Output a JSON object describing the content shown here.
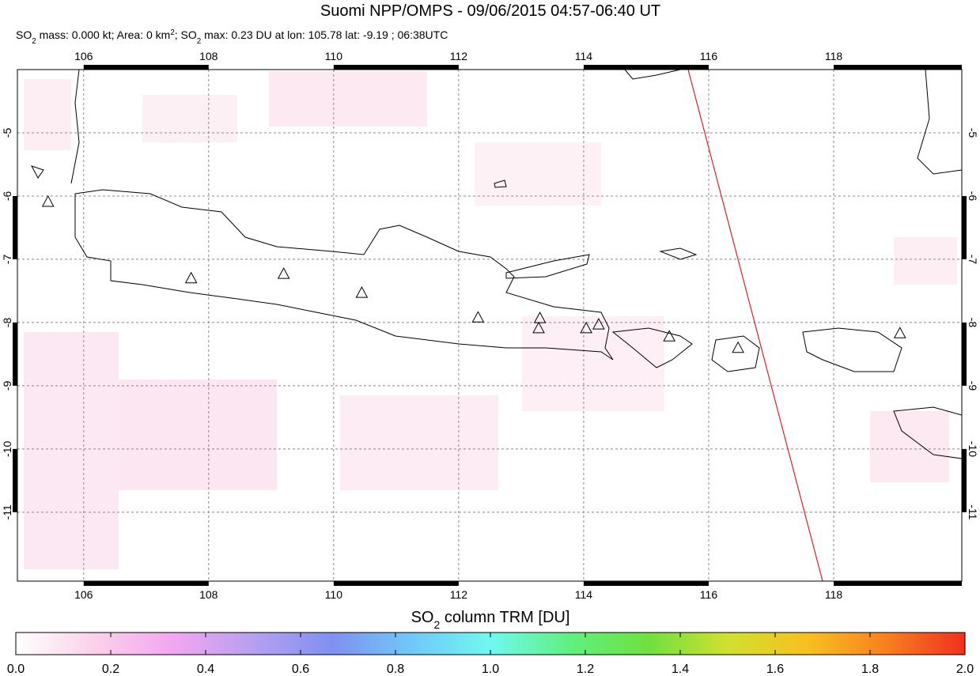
{
  "chart_data": {
    "type": "map",
    "title": "Suomi NPP/OMPS - 09/06/2015 04:57-06:40 UT",
    "subtitle": [
      "SO",
      "2",
      " mass: 0.000 kt; Area: 0 km",
      "2",
      "; SO",
      "2",
      " max: 0.23 DU at lon: 105.78 lat: -9.19 ; 06:38UTC"
    ],
    "xlim": [
      104.94,
      120.05
    ],
    "ylim": [
      -12.09,
      -4.0
    ],
    "xticks": [
      106,
      108,
      110,
      112,
      114,
      116,
      118
    ],
    "yticks": [
      -5,
      -6,
      -7,
      -8,
      -9,
      -10,
      -11
    ],
    "grid": true,
    "volcanoes": {
      "lon": [
        105.43,
        107.72,
        109.2,
        110.45,
        112.31,
        113.3,
        113.28,
        114.04,
        114.24,
        115.37,
        116.47,
        119.06
      ],
      "lat": [
        -6.1,
        -7.31,
        -7.24,
        -7.54,
        -7.93,
        -7.94,
        -8.1,
        -8.1,
        -8.04,
        -8.23,
        -8.41,
        -8.18
      ]
    },
    "colorbar": {
      "title": [
        "SO",
        "2",
        " column TRM [DU]"
      ],
      "lim": [
        0,
        2
      ],
      "ticks": [
        {
          "value": 0,
          "label": "0.0"
        },
        0.2,
        0.4,
        0.6,
        0.8,
        {
          "value": 1,
          "label": "1.0"
        },
        1.2,
        1.4,
        1.6,
        1.8,
        {
          "value": 2,
          "label": "2.0"
        }
      ],
      "colors": [
        "#ffffff",
        "#fbd0ea",
        "#f2a6f0",
        "#b7a0f0",
        "#8090f0",
        "#70c8f8",
        "#70f8f0",
        "#60f080",
        "#70e040",
        "#d0e030",
        "#f8c020",
        "#f88020",
        "#f03020"
      ]
    }
  }
}
